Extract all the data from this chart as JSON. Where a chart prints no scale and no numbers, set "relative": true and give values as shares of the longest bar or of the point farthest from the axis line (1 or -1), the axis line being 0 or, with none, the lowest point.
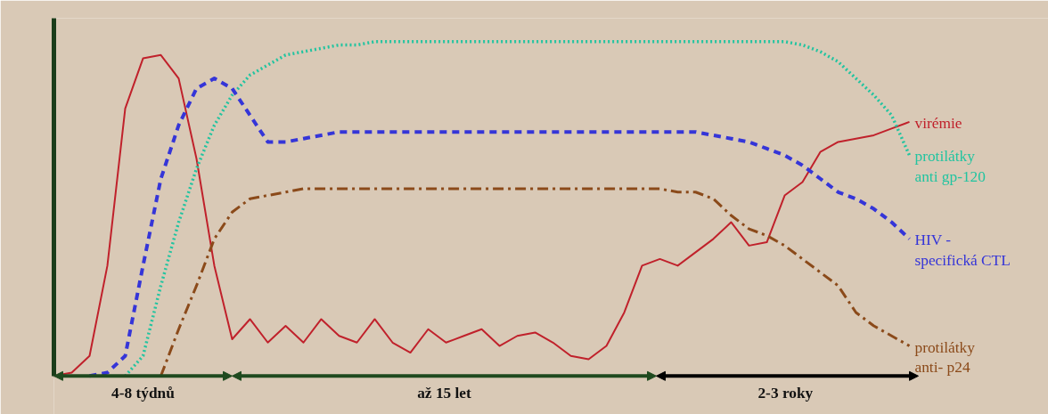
{
  "chart_data": {
    "type": "line",
    "relative": true,
    "grid": false,
    "legend": false,
    "marker": "none",
    "categories": [
      null,
      null,
      null,
      null,
      null,
      null,
      null,
      null,
      null,
      null,
      null,
      null,
      null,
      null,
      null,
      null,
      null,
      null,
      null,
      null,
      null,
      null,
      null,
      null,
      null,
      null,
      null,
      null,
      null,
      null,
      null,
      null,
      null,
      null,
      null,
      null,
      null,
      null,
      null,
      null,
      null,
      null,
      null,
      null,
      null,
      null,
      null,
      null,
      null
    ],
    "series": [
      {
        "name": "virémie",
        "color": "#c0212b",
        "line_style": "solid",
        "values": [
          0,
          0.01,
          0.06,
          0.33,
          0.8,
          0.95,
          0.96,
          0.89,
          0.65,
          0.33,
          0.11,
          0.17,
          0.1,
          0.15,
          0.1,
          0.17,
          0.12,
          0.1,
          0.17,
          0.1,
          0.07,
          0.14,
          0.1,
          0.12,
          0.14,
          0.09,
          0.12,
          0.13,
          0.1,
          0.06,
          0.05,
          0.09,
          0.19,
          0.33,
          0.35,
          0.33,
          0.37,
          0.41,
          0.46,
          0.39,
          0.4,
          0.54,
          0.58,
          0.67,
          0.7,
          0.71,
          0.72,
          0.74,
          0.76
        ]
      },
      {
        "name": "protilátky\nanti gp-120",
        "color": "#22c4a0",
        "line_style": "dotted",
        "values": [
          null,
          null,
          null,
          null,
          0,
          0.06,
          0.27,
          0.46,
          0.62,
          0.75,
          0.84,
          0.9,
          0.93,
          0.96,
          0.97,
          0.98,
          0.99,
          0.99,
          1,
          1,
          1,
          1,
          1,
          1,
          1,
          1,
          1,
          1,
          1,
          1,
          1,
          1,
          1,
          1,
          1,
          1,
          1,
          1,
          1,
          1,
          1,
          1,
          0.99,
          0.97,
          0.94,
          0.89,
          0.84,
          0.78,
          0.66
        ]
      },
      {
        "name": "HIV -\nspecifická CTL",
        "color": "#3535d8",
        "line_style": "dashed",
        "values": [
          null,
          null,
          0,
          0.01,
          0.06,
          0.33,
          0.59,
          0.75,
          0.86,
          0.89,
          0.86,
          0.78,
          0.7,
          0.7,
          0.71,
          0.72,
          0.73,
          0.73,
          0.73,
          0.73,
          0.73,
          0.73,
          0.73,
          0.73,
          0.73,
          0.73,
          0.73,
          0.73,
          0.73,
          0.73,
          0.73,
          0.73,
          0.73,
          0.73,
          0.73,
          0.73,
          0.73,
          0.72,
          0.71,
          0.7,
          0.68,
          0.66,
          0.63,
          0.59,
          0.55,
          0.53,
          0.5,
          0.46,
          0.41
        ]
      },
      {
        "name": "protilátky\nanti- p24",
        "color": "#8b4a1a",
        "line_style": "dashdot",
        "values": [
          null,
          null,
          null,
          null,
          null,
          null,
          0,
          0.14,
          0.27,
          0.41,
          0.49,
          0.53,
          0.54,
          0.55,
          0.56,
          0.56,
          0.56,
          0.56,
          0.56,
          0.56,
          0.56,
          0.56,
          0.56,
          0.56,
          0.56,
          0.56,
          0.56,
          0.56,
          0.56,
          0.56,
          0.56,
          0.56,
          0.56,
          0.56,
          0.56,
          0.55,
          0.55,
          0.53,
          0.48,
          0.44,
          0.42,
          0.39,
          0.35,
          0.31,
          0.27,
          0.19,
          0.15,
          0.12,
          0.09
        ]
      }
    ],
    "annotations": [
      "4-8 týdnů",
      "až 15 let",
      "2-3  roky"
    ]
  }
}
